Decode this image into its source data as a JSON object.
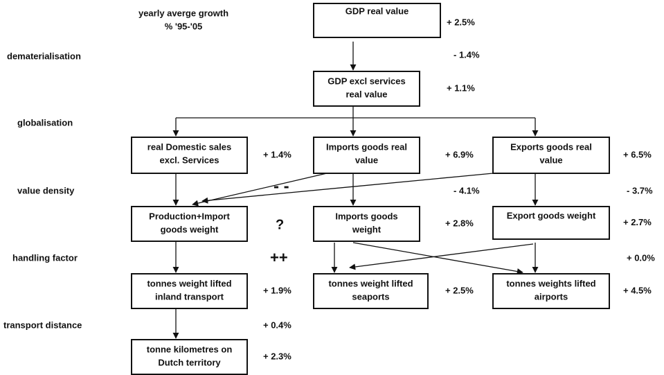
{
  "header": {
    "lines": [
      "yearly averge growth",
      "% '95-'05"
    ]
  },
  "factors": [
    "dematerialisation",
    "globalisation",
    "value density",
    "handling factor",
    "transport distance"
  ],
  "factor_changes": [
    "- 1.4%",
    "- 4.1%",
    "- 3.7%",
    "+ 0.0%",
    "+ 0.4%"
  ],
  "nodes": [
    {
      "lines": [
        "GDP real value"
      ],
      "growth": "+ 2.5%"
    },
    {
      "lines": [
        "GDP excl services",
        "real value"
      ],
      "growth": "+ 1.1%"
    },
    {
      "lines": [
        "real Domestic sales",
        "excl. Services"
      ],
      "growth": "+ 1.4%"
    },
    {
      "lines": [
        "Imports goods real",
        "value"
      ],
      "growth": "+ 6.9%"
    },
    {
      "lines": [
        "Exports goods real",
        "value"
      ],
      "growth": "+ 6.5%"
    },
    {
      "lines": [
        "Production+Import",
        "goods weight"
      ]
    },
    {
      "lines": [
        "Imports goods",
        "weight"
      ],
      "growth": "+ 2.8%"
    },
    {
      "lines": [
        "Export goods weight"
      ],
      "growth": "+ 2.7%"
    },
    {
      "lines": [
        "tonnes weight lifted",
        "inland transport"
      ],
      "growth": "+ 1.9%"
    },
    {
      "lines": [
        "tonnes weight lifted",
        "seaports"
      ],
      "growth": "+ 2.5%"
    },
    {
      "lines": [
        "tonnes weights lifted",
        "airports"
      ],
      "growth": "+ 4.5%"
    },
    {
      "lines": [
        "tonne kilometres on",
        "Dutch territory"
      ],
      "growth": "+ 2.3%"
    }
  ],
  "symbols": [
    "- -",
    "?",
    "++"
  ]
}
